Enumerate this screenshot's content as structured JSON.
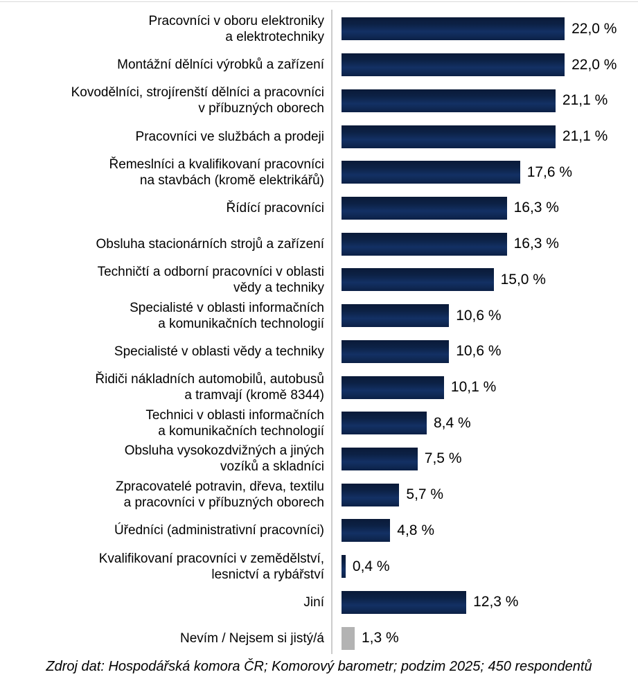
{
  "chart_data": {
    "type": "bar",
    "orientation": "horizontal",
    "title": "",
    "xlabel": "",
    "ylabel": "",
    "unit": "%",
    "xlim": [
      0,
      23.5
    ],
    "grid": "off",
    "legend": "none",
    "categories": [
      "Pracovníci v oboru elektroniky\na elektrotechniky",
      "Montážní dělníci výrobků a zařízení",
      "Kovodělníci, strojírenští dělníci a pracovníci\nv příbuzných oborech",
      "Pracovníci ve službách a prodeji",
      "Řemeslníci a kvalifikovaní pracovníci\nna stavbách (kromě elektrikářů)",
      "Řídící pracovníci",
      "Obsluha stacionárních strojů a zařízení",
      "Techničtí a odborní pracovníci v oblasti\nvědy a techniky",
      "Specialisté v oblasti informačních\na komunikačních technologií",
      "Specialisté v oblasti vědy a techniky",
      "Řidiči nákladních automobilů, autobusů\na tramvají (kromě 8344)",
      "Technici v oblasti informačních\na komunikačních technologií",
      "Obsluha vysokozdvižných a jiných\nvozíků a skladníci",
      "Zpracovatelé potravin, dřeva, textilu\na pracovníci v příbuzných oborech",
      "Úředníci (administrativní pracovníci)",
      "Kvalifikovaní pracovníci v zemědělství,\nlesnictví a rybářství",
      "Jiní",
      "Nevím / Nejsem si jistý/á"
    ],
    "values": [
      22.0,
      22.0,
      21.1,
      21.1,
      17.6,
      16.3,
      16.3,
      15.0,
      10.6,
      10.6,
      10.1,
      8.4,
      7.5,
      5.7,
      4.8,
      0.4,
      12.3,
      1.3
    ],
    "value_labels": [
      "22,0 %",
      "22,0 %",
      "21,1 %",
      "21,1 %",
      "17,6 %",
      "16,3 %",
      "16,3 %",
      "15,0 %",
      "10,6 %",
      "10,6 %",
      "10,1 %",
      "8,4 %",
      "7,5 %",
      "5,7 %",
      "4,8 %",
      "0,4 %",
      "12,3 %",
      "1,3 %"
    ],
    "gray_index": 17,
    "bar_color": "#0e2449",
    "gray_bar_color": "#b3b3b3",
    "source": "Zdroj dat: Hospodářská komora ČR; Komorový barometr; podzim 2025; 450 respondentů"
  }
}
